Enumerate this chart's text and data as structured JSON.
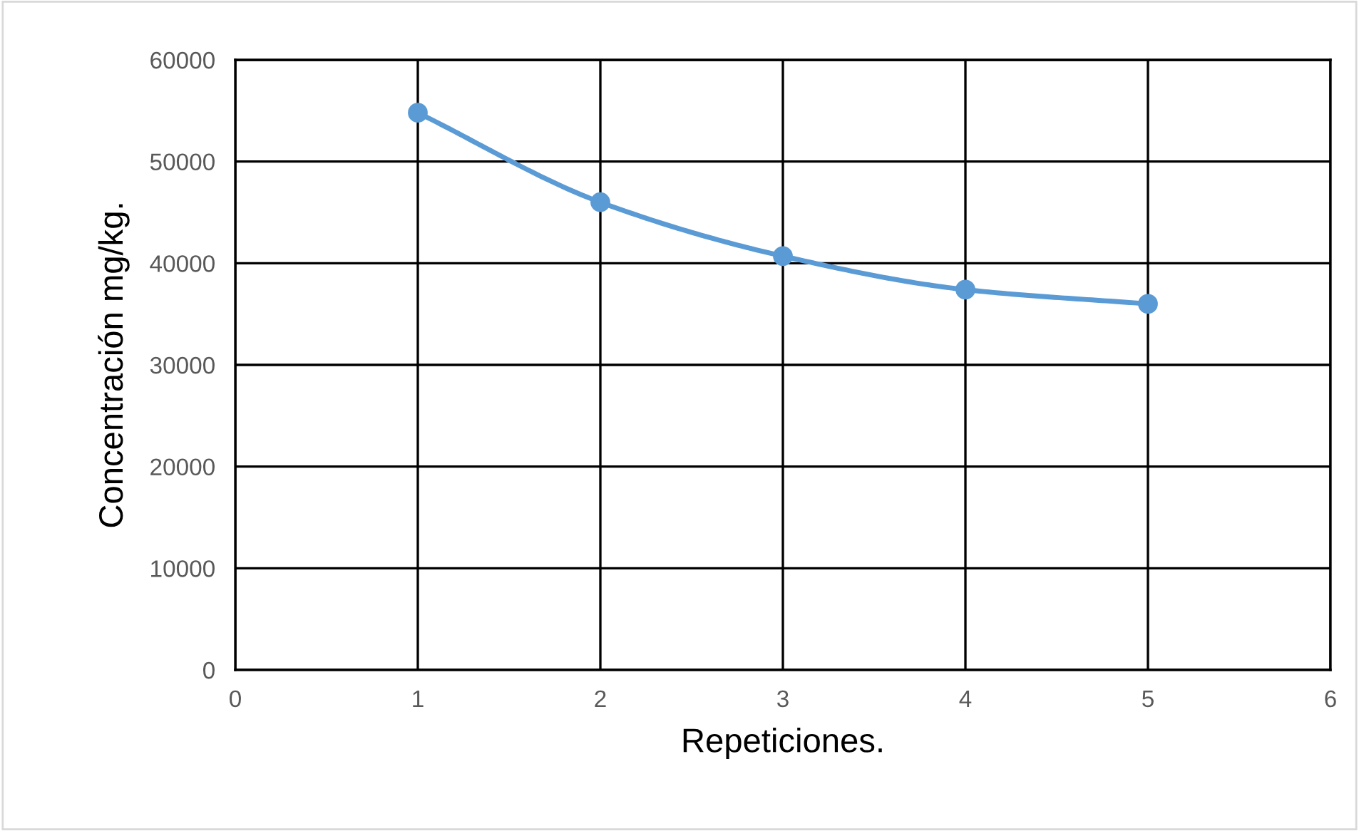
{
  "chart_data": {
    "type": "line",
    "xlabel": "Repeticiones.",
    "ylabel": "Concentración mg/kg.",
    "x": [
      1,
      2,
      3,
      4,
      5
    ],
    "series": [
      {
        "color": "#5b9bd5",
        "values": [
          54800,
          46000,
          40700,
          37400,
          36000
        ]
      }
    ],
    "xlim": [
      0,
      6
    ],
    "xticks": [
      0,
      1,
      2,
      3,
      4,
      5,
      6
    ],
    "ylim": [
      0,
      60000
    ],
    "yticks": [
      0,
      10000,
      20000,
      30000,
      40000,
      50000,
      60000
    ],
    "grid": true,
    "marker": "circle",
    "line_style": "solid"
  }
}
